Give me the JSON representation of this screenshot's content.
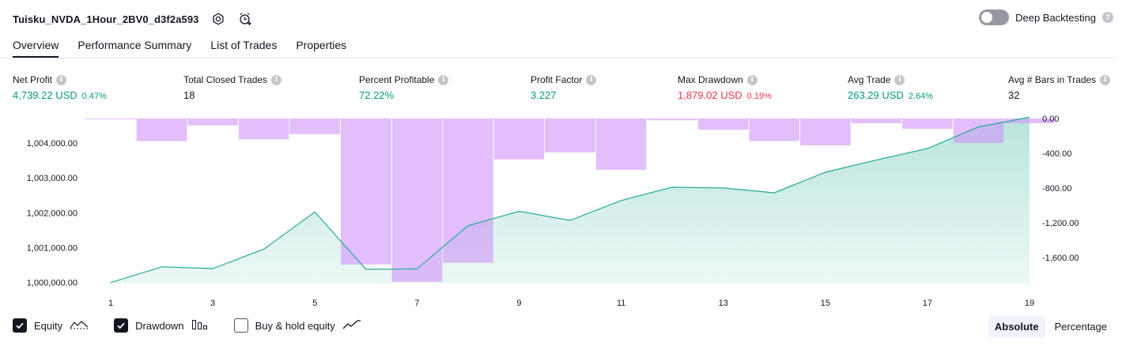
{
  "header": {
    "strategy_name": "Tuisku_NVDA_1Hour_2BV0_d3f2a593",
    "icons": [
      "settings-icon",
      "add-alert-icon"
    ],
    "deep_backtesting_label": "Deep Backtesting",
    "deep_backtesting_enabled": false
  },
  "tabs": [
    {
      "label": "Overview",
      "active": true
    },
    {
      "label": "Performance Summary",
      "active": false
    },
    {
      "label": "List of Trades",
      "active": false
    },
    {
      "label": "Properties",
      "active": false
    }
  ],
  "metrics": [
    {
      "label": "Net Profit",
      "value": "4,739.22 USD",
      "pct": "0.47%",
      "tone": "green"
    },
    {
      "label": "Total Closed Trades",
      "value": "18",
      "pct": "",
      "tone": "dark"
    },
    {
      "label": "Percent Profitable",
      "value": "72.22%",
      "pct": "",
      "tone": "green"
    },
    {
      "label": "Profit Factor",
      "value": "3.227",
      "pct": "",
      "tone": "green"
    },
    {
      "label": "Max Drawdown",
      "value": "1,879.02 USD",
      "pct": "0.19%",
      "tone": "red"
    },
    {
      "label": "Avg Trade",
      "value": "263.29 USD",
      "pct": "2.64%",
      "tone": "green"
    },
    {
      "label": "Avg # Bars in Trades",
      "value": "32",
      "pct": "",
      "tone": "dark"
    }
  ],
  "chart_data": {
    "type": "line",
    "x": [
      1,
      2,
      3,
      4,
      5,
      6,
      7,
      8,
      9,
      10,
      11,
      12,
      13,
      14,
      15,
      16,
      17,
      18,
      19
    ],
    "x_tick_labels": [
      "1",
      "3",
      "5",
      "7",
      "9",
      "11",
      "13",
      "15",
      "17",
      "19"
    ],
    "series": [
      {
        "name": "Equity",
        "type": "area",
        "axis": "left",
        "color": "#22ab94",
        "values": [
          1000000,
          1000450,
          1000400,
          1000960,
          1002020,
          1000380,
          1000390,
          1001630,
          1002040,
          1001780,
          1002350,
          1002730,
          1002710,
          1002570,
          1003160,
          1003510,
          1003840,
          1004460,
          1004739.22
        ]
      },
      {
        "name": "Drawdown",
        "type": "bar",
        "axis": "right",
        "color": "#ce93f8",
        "values": [
          -5,
          -260,
          -80,
          -240,
          -180,
          -1680,
          -1879.02,
          -1660,
          -470,
          -390,
          -590,
          -20,
          -130,
          -260,
          -310,
          -55,
          -120,
          -280,
          -55
        ]
      }
    ],
    "left_axis": {
      "ticks": [
        "1,000,000.00",
        "1,001,000.00",
        "1,002,000.00",
        "1,003,000.00",
        "1,004,000.00"
      ],
      "ylim": [
        999970,
        1004700
      ]
    },
    "right_axis": {
      "ticks": [
        "0.00",
        "-400.00",
        "-800.00",
        "-1,200.00",
        "-1,600.00"
      ],
      "ylim": [
        -1900,
        0
      ]
    },
    "grid": false
  },
  "legend": [
    {
      "label": "Equity",
      "checked": true,
      "icon": "equity-line-icon"
    },
    {
      "label": "Drawdown",
      "checked": true,
      "icon": "drawdown-bars-icon"
    },
    {
      "label": "Buy & hold equity",
      "checked": false,
      "icon": "buy-hold-line-icon"
    }
  ],
  "modes": [
    {
      "label": "Absolute",
      "active": true
    },
    {
      "label": "Percentage",
      "active": false
    }
  ]
}
